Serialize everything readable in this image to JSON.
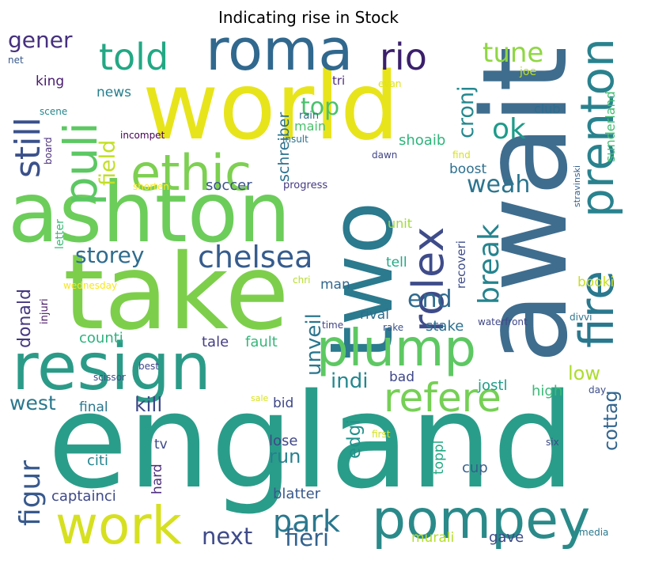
{
  "chart_data": {
    "type": "wordcloud",
    "title": "Indicating rise in Stock",
    "words": [
      {
        "text": "england",
        "weight": 100,
        "color": "#2a9d8a"
      },
      {
        "text": "await",
        "weight": 82,
        "color": "#3f6d8e"
      },
      {
        "text": "take",
        "weight": 80,
        "color": "#7dcf4b"
      },
      {
        "text": "world",
        "weight": 78,
        "color": "#e8e41b"
      },
      {
        "text": "ashton",
        "weight": 73,
        "color": "#6ccd5a"
      },
      {
        "text": "two",
        "weight": 70,
        "color": "#2b7a8e"
      },
      {
        "text": "resign",
        "weight": 60,
        "color": "#2b9b88"
      },
      {
        "text": "roma",
        "weight": 50,
        "color": "#31688e"
      },
      {
        "text": "pompey",
        "weight": 49,
        "color": "#2a8a8a"
      },
      {
        "text": "work",
        "weight": 48,
        "color": "#d6e020"
      },
      {
        "text": "plump",
        "weight": 47,
        "color": "#5dc862"
      },
      {
        "text": "ethic",
        "weight": 46,
        "color": "#7dd051"
      },
      {
        "text": "fire",
        "weight": 45,
        "color": "#2a788e"
      },
      {
        "text": "prenton",
        "weight": 43,
        "color": "#29828e"
      },
      {
        "text": "puli",
        "weight": 42,
        "color": "#5cc863"
      },
      {
        "text": "rolex",
        "weight": 40,
        "color": "#3e4c8a"
      },
      {
        "text": "refere",
        "weight": 36,
        "color": "#75d054"
      },
      {
        "text": "told",
        "weight": 34,
        "color": "#22a884"
      },
      {
        "text": "rio",
        "weight": 34,
        "color": "#3b1f6b"
      },
      {
        "text": "still",
        "weight": 32,
        "color": "#3b518b"
      },
      {
        "text": "chelsea",
        "weight": 28,
        "color": "#365c8d"
      },
      {
        "text": "park",
        "weight": 28,
        "color": "#2a788e"
      },
      {
        "text": "figur",
        "weight": 26,
        "color": "#38598c"
      },
      {
        "text": "ok",
        "weight": 26,
        "color": "#1e9b8a"
      },
      {
        "text": "break",
        "weight": 26,
        "color": "#25848e"
      },
      {
        "text": "tune",
        "weight": 24,
        "color": "#8fd744"
      },
      {
        "text": "weah",
        "weight": 22,
        "color": "#2b758e"
      },
      {
        "text": "top",
        "weight": 22,
        "color": "#4ac16d"
      },
      {
        "text": "end",
        "weight": 22,
        "color": "#306a8e"
      },
      {
        "text": "fieri",
        "weight": 21,
        "color": "#33628d"
      },
      {
        "text": "next",
        "weight": 21,
        "color": "#3e4a89"
      },
      {
        "text": "storey",
        "weight": 20,
        "color": "#2f6c8e"
      },
      {
        "text": "gener",
        "weight": 20,
        "color": "#46307e"
      },
      {
        "text": "cronj",
        "weight": 19,
        "color": "#23888e"
      },
      {
        "text": "field",
        "weight": 19,
        "color": "#c2df23"
      },
      {
        "text": "unveil",
        "weight": 19,
        "color": "#2a768e"
      },
      {
        "text": "indi",
        "weight": 19,
        "color": "#24878e"
      },
      {
        "text": "kill",
        "weight": 18,
        "color": "#3e4989"
      },
      {
        "text": "west",
        "weight": 18,
        "color": "#2a788e"
      },
      {
        "text": "cottag",
        "weight": 17,
        "color": "#32658e"
      },
      {
        "text": "run",
        "weight": 17,
        "color": "#27808e"
      },
      {
        "text": "low",
        "weight": 17,
        "color": "#addc30"
      },
      {
        "text": "edgi",
        "weight": 16,
        "color": "#21918c"
      },
      {
        "text": "donald",
        "weight": 15,
        "color": "#453781"
      },
      {
        "text": "schreiber",
        "weight": 14,
        "color": "#2c728e"
      },
      {
        "text": "shoaib",
        "weight": 13,
        "color": "#2fb47c"
      },
      {
        "text": "soccer",
        "weight": 13,
        "color": "#3a538b"
      },
      {
        "text": "counti",
        "weight": 13,
        "color": "#2db27d"
      },
      {
        "text": "fault",
        "weight": 13,
        "color": "#35b779"
      },
      {
        "text": "tale",
        "weight": 13,
        "color": "#433e85"
      },
      {
        "text": "blatter",
        "weight": 13,
        "color": "#38598c"
      },
      {
        "text": "lose",
        "weight": 13,
        "color": "#3f4788"
      },
      {
        "text": "captainci",
        "weight": 13,
        "color": "#3e4989"
      },
      {
        "text": "citi",
        "weight": 13,
        "color": "#25848e"
      },
      {
        "text": "toppl",
        "weight": 12,
        "color": "#23a983"
      },
      {
        "text": "jostl",
        "weight": 13,
        "color": "#1f9e89"
      },
      {
        "text": "stake",
        "weight": 13,
        "color": "#2d708e"
      },
      {
        "text": "high",
        "weight": 13,
        "color": "#3aba76"
      },
      {
        "text": "murali",
        "weight": 12,
        "color": "#b5de2b"
      },
      {
        "text": "gave",
        "weight": 13,
        "color": "#3e4989"
      },
      {
        "text": "cup",
        "weight": 13,
        "color": "#35608d"
      },
      {
        "text": "news",
        "weight": 12,
        "color": "#277f8e"
      },
      {
        "text": "king",
        "weight": 12,
        "color": "#481c6e"
      },
      {
        "text": "main",
        "weight": 11,
        "color": "#4ac16d"
      },
      {
        "text": "boost",
        "weight": 12,
        "color": "#2d708e"
      },
      {
        "text": "booki",
        "weight": 11,
        "color": "#c8e020"
      },
      {
        "text": "rival",
        "weight": 12,
        "color": "#2e6e8e"
      },
      {
        "text": "man",
        "weight": 12,
        "color": "#31678e"
      },
      {
        "text": "tell",
        "weight": 12,
        "color": "#22a884"
      },
      {
        "text": "unit",
        "weight": 11,
        "color": "#a0da39"
      },
      {
        "text": "club",
        "weight": 11,
        "color": "#2e6d8e"
      },
      {
        "text": "joe",
        "weight": 10,
        "color": "#bddf26"
      },
      {
        "text": "sunderland",
        "weight": 11,
        "color": "#42be71"
      },
      {
        "text": "final",
        "weight": 12,
        "color": "#2a768e"
      },
      {
        "text": "bad",
        "weight": 12,
        "color": "#3f4788"
      },
      {
        "text": "bid",
        "weight": 12,
        "color": "#3f4788"
      },
      {
        "text": "tv",
        "weight": 12,
        "color": "#3e4a89"
      },
      {
        "text": "hard",
        "weight": 12,
        "color": "#4e2d7f"
      },
      {
        "text": "recoveri",
        "weight": 10,
        "color": "#3d4d8a"
      },
      {
        "text": "tri",
        "weight": 10,
        "color": "#4e2d7f"
      },
      {
        "text": "letter",
        "weight": 9,
        "color": "#3aba76"
      },
      {
        "text": "injuri",
        "weight": 9,
        "color": "#471365"
      },
      {
        "text": "progress",
        "weight": 9,
        "color": "#453882"
      },
      {
        "text": "incompet",
        "weight": 8,
        "color": "#440154"
      },
      {
        "text": "insult",
        "weight": 8,
        "color": "#2c728e"
      },
      {
        "text": "rain",
        "weight": 8,
        "color": "#2f6c8e"
      },
      {
        "text": "scene",
        "weight": 8,
        "color": "#24868e"
      },
      {
        "text": "board",
        "weight": 8,
        "color": "#472d7b"
      },
      {
        "text": "net",
        "weight": 8,
        "color": "#38588c"
      },
      {
        "text": "evan",
        "weight": 8,
        "color": "#dfe318"
      },
      {
        "text": "dawn",
        "weight": 8,
        "color": "#404588"
      },
      {
        "text": "find",
        "weight": 8,
        "color": "#d6e21a"
      },
      {
        "text": "stravinski",
        "weight": 7,
        "color": "#355f8d"
      },
      {
        "text": "shorten",
        "weight": 8,
        "color": "#fde725"
      },
      {
        "text": "wednesday",
        "weight": 8,
        "color": "#f8e621"
      },
      {
        "text": "chri",
        "weight": 8,
        "color": "#b5de2b"
      },
      {
        "text": "time",
        "weight": 8,
        "color": "#414487"
      },
      {
        "text": "rake",
        "weight": 8,
        "color": "#3b528b"
      },
      {
        "text": "waterfront",
        "weight": 8,
        "color": "#3f4788"
      },
      {
        "text": "divvi",
        "weight": 8,
        "color": "#2c738e"
      },
      {
        "text": "best",
        "weight": 8,
        "color": "#404688"
      },
      {
        "text": "scissor",
        "weight": 8,
        "color": "#3d4e8a"
      },
      {
        "text": "sale",
        "weight": 7,
        "color": "#d8e219"
      },
      {
        "text": "day",
        "weight": 8,
        "color": "#3d4e8a"
      },
      {
        "text": "first",
        "weight": 8,
        "color": "#d2e21b"
      },
      {
        "text": "six",
        "weight": 8,
        "color": "#3f4889"
      },
      {
        "text": "media",
        "weight": 8,
        "color": "#2a788e"
      }
    ]
  }
}
